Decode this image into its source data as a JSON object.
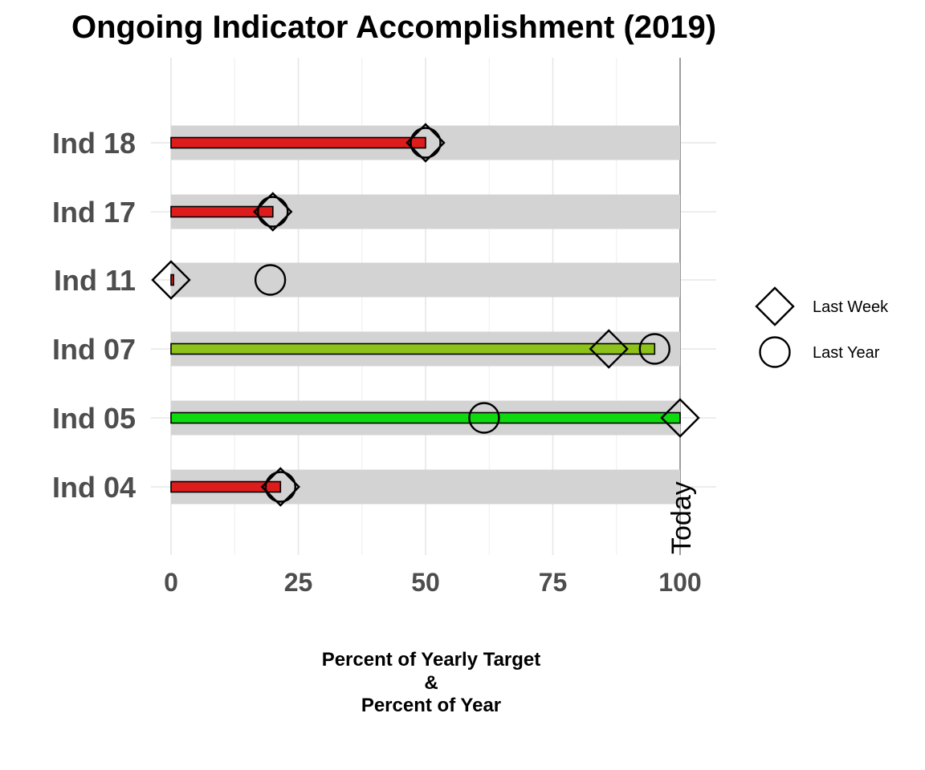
{
  "chart_data": {
    "type": "bar",
    "title": "Ongoing Indicator Accomplishment (2019)",
    "xlabel_lines": [
      "Percent of Yearly Target",
      "&",
      "Percent of Year"
    ],
    "xlim": [
      0,
      100
    ],
    "x_ticks": [
      0,
      25,
      50,
      75,
      100
    ],
    "grid": true,
    "categories": [
      "Ind 18",
      "Ind 17",
      "Ind 11",
      "Ind 07",
      "Ind 05",
      "Ind 04"
    ],
    "series": [
      {
        "values": [
          50,
          20,
          0.5,
          95,
          100,
          21.5
        ],
        "colors": [
          "#dd1c1c",
          "#dd1c1c",
          "#dd1c1c",
          "#8dc21a",
          "#0fd90f",
          "#dd1c1c"
        ]
      },
      {
        "name": "Last Week",
        "marker": "diamond",
        "values": [
          50,
          20,
          0,
          86,
          100,
          21.5
        ]
      },
      {
        "name": "Last Year",
        "marker": "circle",
        "values": [
          50,
          20,
          19.5,
          95,
          61.5,
          21.5
        ]
      }
    ],
    "background_band_max": 100,
    "reference_line": {
      "x": 100,
      "label": "Today"
    },
    "legend": {
      "placement": "right",
      "entries": [
        {
          "label": "Last Week",
          "marker": "diamond"
        },
        {
          "label": "Last Year",
          "marker": "circle"
        }
      ]
    }
  }
}
